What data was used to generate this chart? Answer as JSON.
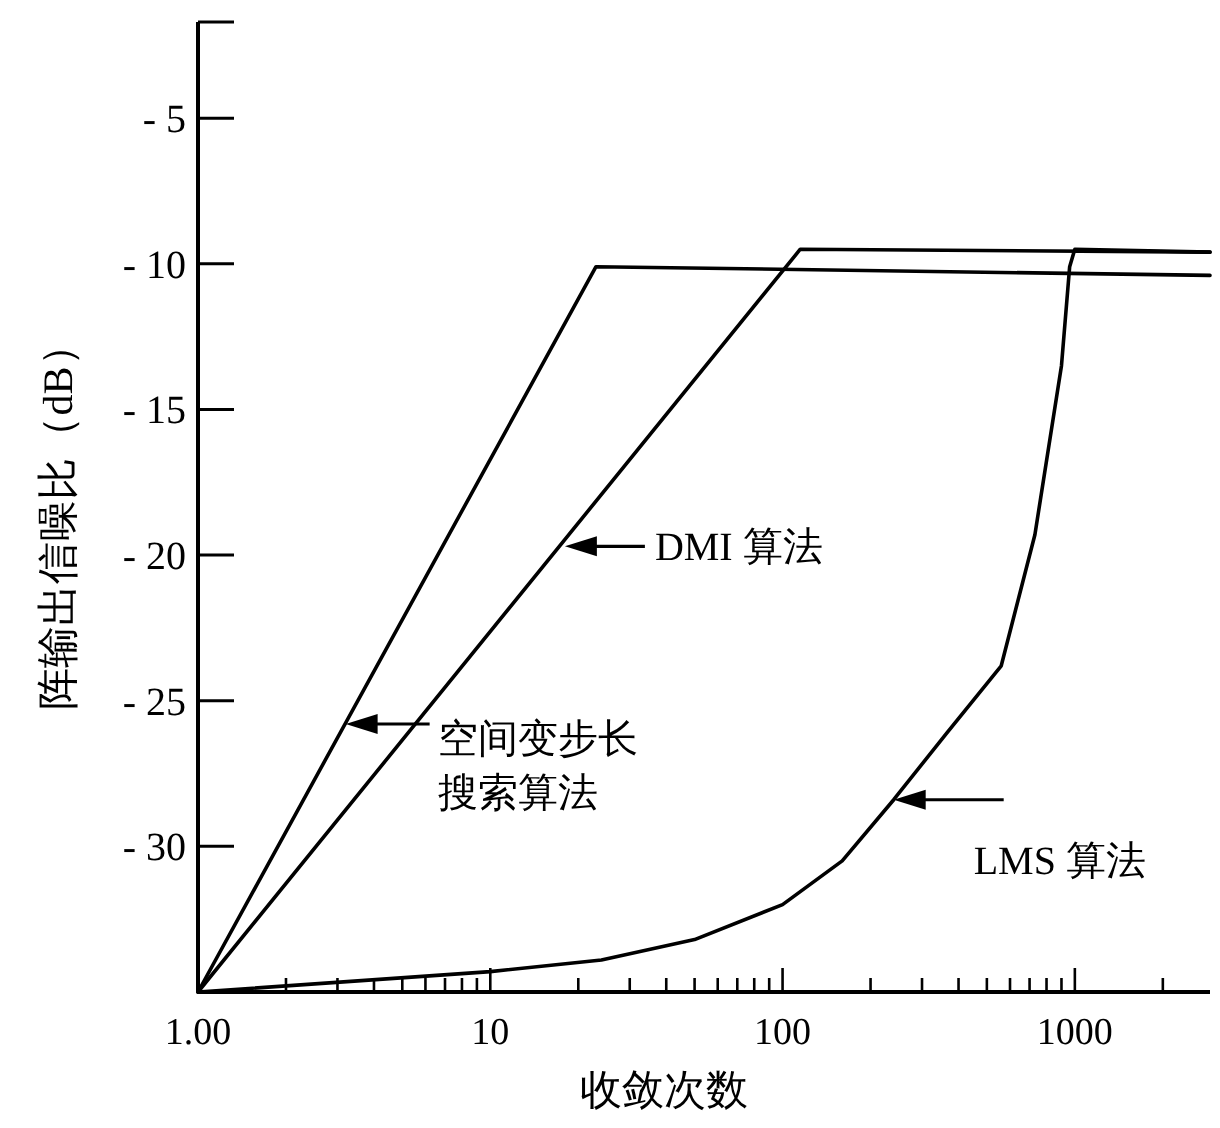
{
  "chart_data": {
    "type": "line",
    "xlabel": "收敛次数",
    "ylabel": "阵输出信噪比（dB）",
    "log": "x",
    "xlim": [
      1,
      2900
    ],
    "ylim": [
      -35,
      -1.7
    ],
    "xticks": [
      {
        "value": 1,
        "label": "1.00"
      },
      {
        "value": 2,
        "label": null
      },
      {
        "value": 3,
        "label": null
      },
      {
        "value": 4,
        "label": null
      },
      {
        "value": 5,
        "label": null
      },
      {
        "value": 6,
        "label": null
      },
      {
        "value": 7,
        "label": null
      },
      {
        "value": 8,
        "label": null
      },
      {
        "value": 9,
        "label": null
      },
      10,
      {
        "value": 20,
        "label": null
      },
      {
        "value": 30,
        "label": null
      },
      {
        "value": 40,
        "label": null
      },
      {
        "value": 50,
        "label": null
      },
      {
        "value": 60,
        "label": null
      },
      {
        "value": 70,
        "label": null
      },
      {
        "value": 80,
        "label": null
      },
      {
        "value": 90,
        "label": null
      },
      100,
      {
        "value": 200,
        "label": null
      },
      {
        "value": 300,
        "label": null
      },
      {
        "value": 400,
        "label": null
      },
      {
        "value": 500,
        "label": null
      },
      {
        "value": 600,
        "label": null
      },
      {
        "value": 700,
        "label": null
      },
      {
        "value": 800,
        "label": null
      },
      {
        "value": 900,
        "label": null
      },
      1000,
      {
        "value": 2000,
        "label": null
      }
    ],
    "yticks": [
      {
        "value": -35,
        "label": null
      },
      {
        "value": -30,
        "label": "- 30"
      },
      {
        "value": -25,
        "label": "- 25"
      },
      {
        "value": -20,
        "label": "- 20"
      },
      {
        "value": -15,
        "label": "- 15"
      },
      {
        "value": -10,
        "label": "- 10"
      },
      {
        "value": -5,
        "label": "- 5"
      }
    ],
    "grid": false,
    "marker": "none",
    "line_style": "solid",
    "series": [
      {
        "color": "#000000",
        "x": [
          1,
          23,
          2900
        ],
        "values": [
          -35,
          -10.1,
          -10.4
        ]
      },
      {
        "color": "#000000",
        "x": [
          1,
          115,
          2900
        ],
        "values": [
          -35,
          -9.5,
          -9.6
        ]
      },
      {
        "color": "#000000",
        "x": [
          1,
          10,
          24,
          50,
          100,
          160,
          240,
          365,
          560,
          730,
          900,
          960,
          1000,
          2900
        ],
        "values": [
          -35,
          -34.3,
          -33.9,
          -33.2,
          -32,
          -30.5,
          -28.4,
          -26.1,
          -23.8,
          -19.3,
          -13.5,
          -10.1,
          -9.5,
          -9.6
        ]
      }
    ],
    "annotations": [
      {
        "text": "DMI 算法",
        "x": 18,
        "y": -19.7
      },
      {
        "text": "空间变步长搜索算法",
        "x": 3.2,
        "y": -25.8
      },
      {
        "text": "LMS 算法",
        "x": 240,
        "y": -28.4
      }
    ]
  }
}
